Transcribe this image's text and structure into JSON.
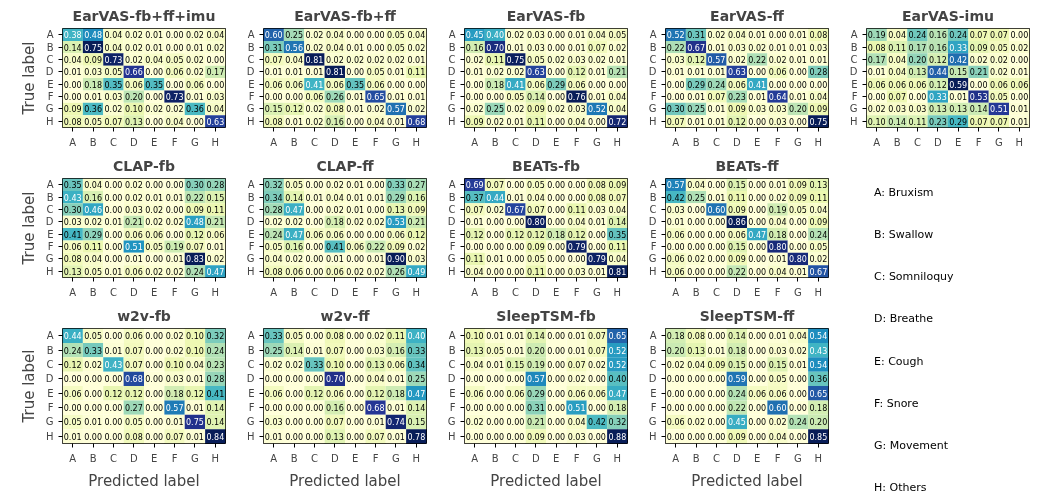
{
  "chart_data": [
    {
      "type": "heatmap",
      "title": "EarVAS-fb+ff+imu",
      "ylabel": "True label",
      "categories": [
        "A",
        "B",
        "C",
        "D",
        "E",
        "F",
        "G",
        "H"
      ],
      "y_categories": [
        "A",
        "B",
        "C",
        "D",
        "E",
        "F",
        "G",
        "H"
      ],
      "cells": [
        [
          0.38,
          0.48,
          0.04,
          0.02,
          0.01,
          0.0,
          0.02,
          0.04
        ],
        [
          0.14,
          0.75,
          0.04,
          0.02,
          0.01,
          0.0,
          0.01,
          0.02
        ],
        [
          0.04,
          0.09,
          0.73,
          0.02,
          0.04,
          0.05,
          0.02,
          0.0
        ],
        [
          0.01,
          0.03,
          0.05,
          0.66,
          0.0,
          0.06,
          0.02,
          0.17
        ],
        [
          0.0,
          0.18,
          0.35,
          0.06,
          0.35,
          0.0,
          0.06,
          0.0
        ],
        [
          0.0,
          0.01,
          0.03,
          0.2,
          0.0,
          0.73,
          0.01,
          0.03
        ],
        [
          0.09,
          0.36,
          0.02,
          0.1,
          0.02,
          0.02,
          0.36,
          0.04
        ],
        [
          0.08,
          0.05,
          0.07,
          0.13,
          0.0,
          0.04,
          0.0,
          0.63
        ]
      ],
      "cell_labels": [
        [
          "0.38",
          "0.48",
          "0.04",
          "0.02",
          "0.01",
          "0.00",
          "0.02",
          "0.04"
        ],
        [
          "0.14",
          "0.75",
          "0.04",
          "0.02",
          "0.01",
          "0.00",
          "0.01",
          "0.02"
        ],
        [
          "0.04",
          "0.09",
          "0.73",
          "0.02",
          "0.04",
          "0.05",
          "0.02",
          "0.00"
        ],
        [
          "0.01",
          "0.03",
          "0.05",
          "0.66",
          "0.00",
          "0.06",
          "0.02",
          "0.17"
        ],
        [
          "0.00",
          "0.18",
          "0.35",
          "0.06",
          "0.35",
          "0.00",
          "0.06",
          "0.00"
        ],
        [
          "0.00",
          "0.01",
          "0.03",
          "0.20",
          "0.00",
          "0.73",
          "0.01",
          "0.03"
        ],
        [
          "0.09",
          "0.36",
          "0.02",
          "0.10",
          "0.02",
          "0.02",
          "0.36",
          "0.04"
        ],
        [
          "0.08",
          "0.05",
          "0.07",
          "0.13",
          "0.00",
          "0.04",
          "0.00",
          "0.63"
        ]
      ]
    },
    {
      "type": "heatmap",
      "title": "EarVAS-fb+ff",
      "categories": [
        "A",
        "B",
        "C",
        "D",
        "E",
        "F",
        "G",
        "H"
      ],
      "y_categories": [
        "A",
        "B",
        "C",
        "D",
        "E",
        "F",
        "G",
        "H"
      ],
      "cells": [
        [
          0.6,
          0.25,
          0.02,
          0.04,
          0.0,
          0.0,
          0.05,
          0.04
        ],
        [
          0.31,
          0.56,
          0.02,
          0.04,
          0.01,
          0.0,
          0.05,
          0.02
        ],
        [
          0.07,
          0.04,
          0.81,
          0.02,
          0.02,
          0.02,
          0.02,
          0.01
        ],
        [
          0.01,
          0.01,
          0.01,
          0.81,
          0.0,
          0.05,
          0.01,
          0.11
        ],
        [
          0.06,
          0.06,
          0.41,
          0.06,
          0.35,
          0.06,
          0.0,
          0.0
        ],
        [
          0.0,
          0.0,
          0.06,
          0.26,
          0.01,
          0.65,
          0.01,
          0.01
        ],
        [
          0.15,
          0.12,
          0.02,
          0.08,
          0.01,
          0.02,
          0.57,
          0.02
        ],
        [
          0.08,
          0.01,
          0.02,
          0.16,
          0.0,
          0.04,
          0.01,
          0.68
        ]
      ],
      "cell_labels": [
        [
          "0.60",
          "0.25",
          "0.02",
          "0.04",
          "0.00",
          "0.00",
          "0.05",
          "0.04"
        ],
        [
          "0.31",
          "0.56",
          "0.02",
          "0.04",
          "0.01",
          "0.00",
          "0.05",
          "0.02"
        ],
        [
          "0.07",
          "0.04",
          "0.81",
          "0.02",
          "0.02",
          "0.02",
          "0.02",
          "0.01"
        ],
        [
          "0.01",
          "0.01",
          "0.01",
          "0.81",
          "0.00",
          "0.05",
          "0.01",
          "0.11"
        ],
        [
          "0.06",
          "0.06",
          "0.41",
          "0.06",
          "0.35",
          "0.06",
          "0.00",
          "0.00"
        ],
        [
          "0.00",
          "0.00",
          "0.06",
          "0.26",
          "0.01",
          "0.65",
          "0.01",
          "0.01"
        ],
        [
          "0.15",
          "0.12",
          "0.02",
          "0.08",
          "0.01",
          "0.02",
          "0.57",
          "0.02"
        ],
        [
          "0.08",
          "0.01",
          "0.02",
          "0.16",
          "0.00",
          "0.04",
          "0.01",
          "0.68"
        ]
      ]
    },
    {
      "type": "heatmap",
      "title": "EarVAS-fb",
      "categories": [
        "A",
        "B",
        "C",
        "D",
        "E",
        "F",
        "G",
        "H"
      ],
      "y_categories": [
        "A",
        "B",
        "C",
        "D",
        "E",
        "F",
        "G",
        "H"
      ],
      "cells": [
        [
          0.45,
          0.4,
          0.02,
          0.03,
          0.0,
          0.01,
          0.04,
          0.05
        ],
        [
          0.16,
          0.7,
          0.01,
          0.03,
          0.0,
          0.01,
          0.07,
          0.02
        ],
        [
          0.02,
          0.11,
          0.75,
          0.05,
          0.02,
          0.03,
          0.02,
          0.01
        ],
        [
          0.01,
          0.02,
          0.02,
          0.63,
          0.0,
          0.12,
          0.01,
          0.21
        ],
        [
          0.0,
          0.18,
          0.41,
          0.06,
          0.29,
          0.06,
          0.0,
          0.0
        ],
        [
          0.0,
          0.0,
          0.05,
          0.14,
          0.0,
          0.76,
          0.01,
          0.04
        ],
        [
          0.02,
          0.25,
          0.02,
          0.09,
          0.02,
          0.03,
          0.52,
          0.04
        ],
        [
          0.09,
          0.02,
          0.01,
          0.11,
          0.0,
          0.04,
          0.0,
          0.72
        ]
      ],
      "cell_labels": [
        [
          "0.45",
          "0.40",
          "0.02",
          "0.03",
          "0.00",
          "0.01",
          "0.04",
          "0.05"
        ],
        [
          "0.16",
          "0.70",
          "0.01",
          "0.03",
          "0.00",
          "0.01",
          "0.07",
          "0.02"
        ],
        [
          "0.02",
          "0.11",
          "0.75",
          "0.05",
          "0.02",
          "0.03",
          "0.02",
          "0.01"
        ],
        [
          "0.01",
          "0.02",
          "0.02",
          "0.63",
          "0.00",
          "0.12",
          "0.01",
          "0.21"
        ],
        [
          "0.00",
          "0.18",
          "0.41",
          "0.06",
          "0.29",
          "0.06",
          "0.00",
          "0.00"
        ],
        [
          "0.00",
          "0.00",
          "0.05",
          "0.14",
          "0.00",
          "0.76",
          "0.01",
          "0.04"
        ],
        [
          "0.02",
          "0.25",
          "0.02",
          "0.09",
          "0.02",
          "0.03",
          "0.52",
          "0.04"
        ],
        [
          "0.09",
          "0.02",
          "0.01",
          "0.11",
          "0.00",
          "0.04",
          "0.00",
          "0.72"
        ]
      ]
    },
    {
      "type": "heatmap",
      "title": "EarVAS-ff",
      "categories": [
        "A",
        "B",
        "C",
        "D",
        "E",
        "F",
        "G",
        "H"
      ],
      "y_categories": [
        "A",
        "B",
        "C",
        "D",
        "E",
        "F",
        "G",
        "H"
      ],
      "cells": [
        [
          0.52,
          0.31,
          0.02,
          0.04,
          0.01,
          0.0,
          0.01,
          0.08
        ],
        [
          0.22,
          0.67,
          0.01,
          0.03,
          0.02,
          0.01,
          0.01,
          0.03
        ],
        [
          0.03,
          0.12,
          0.57,
          0.02,
          0.22,
          0.02,
          0.01,
          0.01
        ],
        [
          0.01,
          0.01,
          0.01,
          0.63,
          0.0,
          0.06,
          0.0,
          0.28
        ],
        [
          0.0,
          0.29,
          0.24,
          0.06,
          0.41,
          0.0,
          0.0,
          0.0
        ],
        [
          0.0,
          0.01,
          0.07,
          0.23,
          0.01,
          0.64,
          0.01,
          0.04
        ],
        [
          0.3,
          0.25,
          0.01,
          0.09,
          0.03,
          0.03,
          0.2,
          0.09
        ],
        [
          0.07,
          0.01,
          0.01,
          0.12,
          0.0,
          0.03,
          0.0,
          0.75
        ]
      ],
      "cell_labels": [
        [
          "0.52",
          "0.31",
          "0.02",
          "0.04",
          "0.01",
          "0.00",
          "0.01",
          "0.08"
        ],
        [
          "0.22",
          "0.67",
          "0.01",
          "0.03",
          "0.02",
          "0.01",
          "0.01",
          "0.03"
        ],
        [
          "0.03",
          "0.12",
          "0.57",
          "0.02",
          "0.22",
          "0.02",
          "0.01",
          "0.01"
        ],
        [
          "0.01",
          "0.01",
          "0.01",
          "0.63",
          "0.00",
          "0.06",
          "0.00",
          "0.28"
        ],
        [
          "0.00",
          "0.29",
          "0.24",
          "0.06",
          "0.41",
          "0.00",
          "0.00",
          "0.00"
        ],
        [
          "0.00",
          "0.01",
          "0.07",
          "0.23",
          "0.01",
          "0.64",
          "0.01",
          "0.04"
        ],
        [
          "0.30",
          "0.25",
          "0.01",
          "0.09",
          "0.03",
          "0.03",
          "0.20",
          "0.09"
        ],
        [
          "0.07",
          "0.01",
          "0.01",
          "0.12",
          "0.00",
          "0.03",
          "0.00",
          "0.75"
        ]
      ]
    },
    {
      "type": "heatmap",
      "title": "EarVAS-imu",
      "categories": [
        "A",
        "B",
        "C",
        "D",
        "E",
        "F",
        "G",
        "H"
      ],
      "y_categories": [
        "A",
        "B",
        "C",
        "D",
        "E",
        "F",
        "G",
        "H"
      ],
      "cells": [
        [
          0.19,
          0.04,
          0.24,
          0.16,
          0.24,
          0.07,
          0.07,
          0.0
        ],
        [
          0.08,
          0.11,
          0.17,
          0.16,
          0.33,
          0.09,
          0.05,
          0.02
        ],
        [
          0.17,
          0.04,
          0.2,
          0.12,
          0.42,
          0.02,
          0.02,
          0.0
        ],
        [
          0.01,
          0.04,
          0.13,
          0.44,
          0.15,
          0.21,
          0.02,
          0.01
        ],
        [
          0.06,
          0.06,
          0.06,
          0.12,
          0.59,
          0.0,
          0.06,
          0.06
        ],
        [
          0.0,
          0.07,
          0.0,
          0.33,
          0.01,
          0.53,
          0.05,
          0.0
        ],
        [
          0.02,
          0.03,
          0.03,
          0.13,
          0.13,
          0.14,
          0.51,
          0.01
        ],
        [
          0.1,
          0.14,
          0.11,
          0.23,
          0.29,
          0.07,
          0.07,
          0.01
        ]
      ],
      "cell_labels": [
        [
          "0.19",
          "0.04",
          "0.24",
          "0.16",
          "0.24",
          "0.07",
          "0.07",
          "0.00"
        ],
        [
          "0.08",
          "0.11",
          "0.17",
          "0.16",
          "0.33",
          "0.09",
          "0.05",
          "0.02"
        ],
        [
          "0.17",
          "0.04",
          "0.20",
          "0.12",
          "0.42",
          "0.02",
          "0.02",
          "0.00"
        ],
        [
          "0.01",
          "0.04",
          "0.13",
          "0.44",
          "0.15",
          "0.21",
          "0.02",
          "0.01"
        ],
        [
          "0.06",
          "0.06",
          "0.06",
          "0.12",
          "0.59",
          "0.00",
          "0.06",
          "0.06"
        ],
        [
          "0.00",
          "0.07",
          "0.00",
          "0.33",
          "0.01",
          "0.53",
          "0.05",
          "0.00"
        ],
        [
          "0.02",
          "0.03",
          "0.03",
          "0.13",
          "0.13",
          "0.14",
          "0.51",
          "0.01"
        ],
        [
          "0.10",
          "0.14",
          "0.11",
          "0.23",
          "0.29",
          "0.07",
          "0.07",
          "0.01"
        ]
      ]
    },
    {
      "type": "heatmap",
      "title": "CLAP-fb",
      "ylabel": "True label",
      "categories": [
        "A",
        "B",
        "C",
        "D",
        "E",
        "F",
        "G",
        "H"
      ],
      "y_categories": [
        "A",
        "B",
        "C",
        "D",
        "E",
        "F",
        "G",
        "H"
      ],
      "cells": [
        [
          0.35,
          0.04,
          0.0,
          0.02,
          0.0,
          0.0,
          0.3,
          0.28
        ],
        [
          0.43,
          0.16,
          0.0,
          0.02,
          0.01,
          0.01,
          0.22,
          0.15
        ],
        [
          0.3,
          0.46,
          0.0,
          0.03,
          0.02,
          0.0,
          0.09,
          0.11
        ],
        [
          0.03,
          0.02,
          0.01,
          0.21,
          0.02,
          0.02,
          0.48,
          0.21
        ],
        [
          0.41,
          0.29,
          0.0,
          0.06,
          0.06,
          0.0,
          0.12,
          0.06
        ],
        [
          0.06,
          0.11,
          0.0,
          0.51,
          0.05,
          0.19,
          0.07,
          0.01
        ],
        [
          0.08,
          0.04,
          0.0,
          0.01,
          0.0,
          0.01,
          0.83,
          0.02
        ],
        [
          0.13,
          0.05,
          0.01,
          0.06,
          0.02,
          0.02,
          0.24,
          0.47
        ]
      ],
      "cell_labels": [
        [
          "0.35",
          "0.04",
          "0.00",
          "0.02",
          "0.00",
          "0.00",
          "0.30",
          "0.28"
        ],
        [
          "0.43",
          "0.16",
          "0.00",
          "0.02",
          "0.01",
          "0.01",
          "0.22",
          "0.15"
        ],
        [
          "0.30",
          "0.46",
          "0.00",
          "0.03",
          "0.02",
          "0.00",
          "0.09",
          "0.11"
        ],
        [
          "0.03",
          "0.02",
          "0.01",
          "0.21",
          "0.02",
          "0.02",
          "0.48",
          "0.21"
        ],
        [
          "0.41",
          "0.29",
          "0.00",
          "0.06",
          "0.06",
          "0.00",
          "0.12",
          "0.06"
        ],
        [
          "0.06",
          "0.11",
          "0.00",
          "0.51",
          "0.05",
          "0.19",
          "0.07",
          "0.01"
        ],
        [
          "0.08",
          "0.04",
          "0.00",
          "0.01",
          "0.00",
          "0.01",
          "0.83",
          "0.02"
        ],
        [
          "0.13",
          "0.05",
          "0.01",
          "0.06",
          "0.02",
          "0.02",
          "0.24",
          "0.47"
        ]
      ]
    },
    {
      "type": "heatmap",
      "title": "CLAP-ff",
      "categories": [
        "A",
        "B",
        "C",
        "D",
        "E",
        "F",
        "G",
        "H"
      ],
      "y_categories": [
        "A",
        "B",
        "C",
        "D",
        "E",
        "F",
        "G",
        "H"
      ],
      "cells": [
        [
          0.32,
          0.05,
          0.0,
          0.02,
          0.01,
          0.0,
          0.33,
          0.27
        ],
        [
          0.34,
          0.14,
          0.01,
          0.04,
          0.01,
          0.01,
          0.29,
          0.16
        ],
        [
          0.28,
          0.47,
          0.0,
          0.02,
          0.01,
          0.0,
          0.13,
          0.09
        ],
        [
          0.02,
          0.02,
          0.0,
          0.18,
          0.02,
          0.02,
          0.53,
          0.21
        ],
        [
          0.24,
          0.47,
          0.06,
          0.06,
          0.0,
          0.0,
          0.06,
          0.12
        ],
        [
          0.05,
          0.16,
          0.0,
          0.41,
          0.06,
          0.22,
          0.09,
          0.02
        ],
        [
          0.04,
          0.02,
          0.0,
          0.01,
          0.0,
          0.01,
          0.9,
          0.03
        ],
        [
          0.08,
          0.06,
          0.0,
          0.06,
          0.02,
          0.02,
          0.26,
          0.49
        ]
      ],
      "cell_labels": [
        [
          "0.32",
          "0.05",
          "0.00",
          "0.02",
          "0.01",
          "0.00",
          "0.33",
          "0.27"
        ],
        [
          "0.34",
          "0.14",
          "0.01",
          "0.04",
          "0.01",
          "0.01",
          "0.29",
          "0.16"
        ],
        [
          "0.28",
          "0.47",
          "0.00",
          "0.02",
          "0.01",
          "0.00",
          "0.13",
          "0.09"
        ],
        [
          "0.02",
          "0.02",
          "0.00",
          "0.18",
          "0.02",
          "0.02",
          "0.53",
          "0.21"
        ],
        [
          "0.24",
          "0.47",
          "0.06",
          "0.06",
          "0.00",
          "0.00",
          "0.06",
          "0.12"
        ],
        [
          "0.05",
          "0.16",
          "0.00",
          "0.41",
          "0.06",
          "0.22",
          "0.09",
          "0.02"
        ],
        [
          "0.04",
          "0.02",
          "0.00",
          "0.01",
          "0.00",
          "0.01",
          "0.90",
          "0.03"
        ],
        [
          "0.08",
          "0.06",
          "0.00",
          "0.06",
          "0.02",
          "0.02",
          "0.26",
          "0.49"
        ]
      ]
    },
    {
      "type": "heatmap",
      "title": "BEATs-fb",
      "categories": [
        "A",
        "B",
        "C",
        "D",
        "E",
        "F",
        "G",
        "H"
      ],
      "y_categories": [
        "A",
        "B",
        "C",
        "D",
        "E",
        "F",
        "G",
        "H"
      ],
      "cells": [
        [
          0.69,
          0.07,
          0.0,
          0.05,
          0.0,
          0.0,
          0.08,
          0.09
        ],
        [
          0.37,
          0.44,
          0.01,
          0.04,
          0.0,
          0.0,
          0.08,
          0.07
        ],
        [
          0.07,
          0.02,
          0.67,
          0.07,
          0.0,
          0.11,
          0.03,
          0.04
        ],
        [
          0.01,
          0.0,
          0.0,
          0.8,
          0.0,
          0.04,
          0.01,
          0.14
        ],
        [
          0.12,
          0.0,
          0.12,
          0.12,
          0.18,
          0.12,
          0.0,
          0.35
        ],
        [
          0.0,
          0.0,
          0.0,
          0.09,
          0.0,
          0.79,
          0.0,
          0.11
        ],
        [
          0.11,
          0.01,
          0.0,
          0.05,
          0.0,
          0.0,
          0.79,
          0.04
        ],
        [
          0.04,
          0.0,
          0.0,
          0.11,
          0.0,
          0.03,
          0.01,
          0.81
        ]
      ],
      "cell_labels": [
        [
          "0.69",
          "0.07",
          "0.00",
          "0.05",
          "0.00",
          "0.00",
          "0.08",
          "0.09"
        ],
        [
          "0.37",
          "0.44",
          "0.01",
          "0.04",
          "0.00",
          "0.00",
          "0.08",
          "0.07"
        ],
        [
          "0.07",
          "0.02",
          "0.67",
          "0.07",
          "0.00",
          "0.11",
          "0.03",
          "0.04"
        ],
        [
          "0.01",
          "0.00",
          "0.00",
          "0.80",
          "0.00",
          "0.04",
          "0.01",
          "0.14"
        ],
        [
          "0.12",
          "0.00",
          "0.12",
          "0.12",
          "0.18",
          "0.12",
          "0.00",
          "0.35"
        ],
        [
          "0.00",
          "0.00",
          "0.00",
          "0.09",
          "0.00",
          "0.79",
          "0.00",
          "0.11"
        ],
        [
          "0.11",
          "0.01",
          "0.00",
          "0.05",
          "0.00",
          "0.00",
          "0.79",
          "0.04"
        ],
        [
          "0.04",
          "0.00",
          "0.00",
          "0.11",
          "0.00",
          "0.03",
          "0.01",
          "0.81"
        ]
      ]
    },
    {
      "type": "heatmap",
      "title": "BEATs-ff",
      "categories": [
        "A",
        "B",
        "C",
        "D",
        "E",
        "F",
        "G",
        "H"
      ],
      "y_categories": [
        "A",
        "B",
        "C",
        "D",
        "E",
        "F",
        "G",
        "H"
      ],
      "cells": [
        [
          0.57,
          0.04,
          0.0,
          0.15,
          0.0,
          0.01,
          0.09,
          0.13
        ],
        [
          0.42,
          0.25,
          0.01,
          0.11,
          0.0,
          0.02,
          0.09,
          0.11
        ],
        [
          0.03,
          0.0,
          0.6,
          0.09,
          0.0,
          0.19,
          0.05,
          0.04
        ],
        [
          0.01,
          0.0,
          0.0,
          0.86,
          0.0,
          0.04,
          0.0,
          0.09
        ],
        [
          0.06,
          0.0,
          0.0,
          0.06,
          0.47,
          0.18,
          0.0,
          0.24
        ],
        [
          0.0,
          0.0,
          0.0,
          0.15,
          0.0,
          0.8,
          0.0,
          0.05
        ],
        [
          0.06,
          0.02,
          0.0,
          0.09,
          0.0,
          0.01,
          0.8,
          0.02
        ],
        [
          0.06,
          0.0,
          0.0,
          0.22,
          0.0,
          0.04,
          0.01,
          0.67
        ]
      ],
      "cell_labels": [
        [
          "0.57",
          "0.04",
          "0.00",
          "0.15",
          "0.00",
          "0.01",
          "0.09",
          "0.13"
        ],
        [
          "0.42",
          "0.25",
          "0.01",
          "0.11",
          "0.00",
          "0.02",
          "0.09",
          "0.11"
        ],
        [
          "0.03",
          "0.00",
          "0.60",
          "0.09",
          "0.00",
          "0.19",
          "0.05",
          "0.04"
        ],
        [
          "0.01",
          "0.00",
          "0.00",
          "0.86",
          "0.00",
          "0.04",
          "0.00",
          "0.09"
        ],
        [
          "0.06",
          "0.00",
          "0.00",
          "0.06",
          "0.47",
          "0.18",
          "0.00",
          "0.24"
        ],
        [
          "0.00",
          "0.00",
          "0.00",
          "0.15",
          "0.00",
          "0.80",
          "0.00",
          "0.05"
        ],
        [
          "0.06",
          "0.02",
          "0.00",
          "0.09",
          "0.00",
          "0.01",
          "0.80",
          "0.02"
        ],
        [
          "0.06",
          "0.00",
          "0.00",
          "0.22",
          "0.00",
          "0.04",
          "0.01",
          "0.67"
        ]
      ]
    },
    {
      "type": "other",
      "annotations": [
        "A: Bruxism",
        "B: Swallow",
        "C: Somniloquy",
        "D: Breathe",
        "E: Cough",
        "F: Snore",
        "G: Movement",
        "H: Others"
      ]
    },
    {
      "type": "heatmap",
      "title": "w2v-fb",
      "ylabel": "True label",
      "xlabel": "Predicted label",
      "categories": [
        "A",
        "B",
        "C",
        "D",
        "E",
        "F",
        "G",
        "H"
      ],
      "y_categories": [
        "A",
        "B",
        "C",
        "D",
        "E",
        "F",
        "G",
        "H"
      ],
      "cells": [
        [
          0.44,
          0.05,
          0.0,
          0.06,
          0.0,
          0.02,
          0.1,
          0.32
        ],
        [
          0.24,
          0.33,
          0.01,
          0.07,
          0.0,
          0.02,
          0.1,
          0.24
        ],
        [
          0.12,
          0.02,
          0.43,
          0.07,
          0.0,
          0.1,
          0.04,
          0.23
        ],
        [
          0.0,
          0.0,
          0.0,
          0.68,
          0.0,
          0.03,
          0.01,
          0.28
        ],
        [
          0.06,
          0.0,
          0.12,
          0.12,
          0.0,
          0.18,
          0.12,
          0.41
        ],
        [
          0.0,
          0.0,
          0.0,
          0.27,
          0.0,
          0.57,
          0.01,
          0.14
        ],
        [
          0.05,
          0.01,
          0.0,
          0.05,
          0.0,
          0.01,
          0.75,
          0.14
        ],
        [
          0.01,
          0.0,
          0.0,
          0.08,
          0.0,
          0.07,
          0.01,
          0.84
        ]
      ],
      "cell_labels": [
        [
          "0.44",
          "0.05",
          "0.00",
          "0.06",
          "0.00",
          "0.02",
          "0.10",
          "0.32"
        ],
        [
          "0.24",
          "0.33",
          "0.01",
          "0.07",
          "0.00",
          "0.02",
          "0.10",
          "0.24"
        ],
        [
          "0.12",
          "0.02",
          "0.43",
          "0.07",
          "0.00",
          "0.10",
          "0.04",
          "0.23"
        ],
        [
          "0.00",
          "0.00",
          "0.00",
          "0.68",
          "0.00",
          "0.03",
          "0.01",
          "0.28"
        ],
        [
          "0.06",
          "0.00",
          "0.12",
          "0.12",
          "0.00",
          "0.18",
          "0.12",
          "0.41"
        ],
        [
          "0.00",
          "0.00",
          "0.00",
          "0.27",
          "0.00",
          "0.57",
          "0.01",
          "0.14"
        ],
        [
          "0.05",
          "0.01",
          "0.00",
          "0.05",
          "0.00",
          "0.01",
          "0.75",
          "0.14"
        ],
        [
          "0.01",
          "0.00",
          "0.00",
          "0.08",
          "0.00",
          "0.07",
          "0.01",
          "0.84"
        ]
      ]
    },
    {
      "type": "heatmap",
      "title": "w2v-ff",
      "xlabel": "Predicted label",
      "categories": [
        "A",
        "B",
        "C",
        "D",
        "E",
        "F",
        "G",
        "H"
      ],
      "y_categories": [
        "A",
        "B",
        "C",
        "D",
        "E",
        "F",
        "G",
        "H"
      ],
      "cells": [
        [
          0.33,
          0.05,
          0.0,
          0.08,
          0.0,
          0.02,
          0.11,
          0.4
        ],
        [
          0.25,
          0.14,
          0.01,
          0.07,
          0.0,
          0.03,
          0.16,
          0.33
        ],
        [
          0.02,
          0.02,
          0.33,
          0.1,
          0.0,
          0.13,
          0.06,
          0.34
        ],
        [
          0.0,
          0.0,
          0.0,
          0.7,
          0.0,
          0.04,
          0.01,
          0.25
        ],
        [
          0.06,
          0.0,
          0.12,
          0.06,
          0.0,
          0.12,
          0.18,
          0.47
        ],
        [
          0.0,
          0.0,
          0.0,
          0.16,
          0.0,
          0.68,
          0.01,
          0.14
        ],
        [
          0.03,
          0.0,
          0.0,
          0.07,
          0.0,
          0.01,
          0.74,
          0.15
        ],
        [
          0.01,
          0.0,
          0.0,
          0.13,
          0.0,
          0.07,
          0.01,
          0.78
        ]
      ],
      "cell_labels": [
        [
          "0.33",
          "0.05",
          "0.00",
          "0.08",
          "0.00",
          "0.02",
          "0.11",
          "0.40"
        ],
        [
          "0.25",
          "0.14",
          "0.01",
          "0.07",
          "0.00",
          "0.03",
          "0.16",
          "0.33"
        ],
        [
          "0.02",
          "0.02",
          "0.33",
          "0.10",
          "0.00",
          "0.13",
          "0.06",
          "0.34"
        ],
        [
          "0.00",
          "0.00",
          "0.00",
          "0.70",
          "0.00",
          "0.04",
          "0.01",
          "0.25"
        ],
        [
          "0.06",
          "0.00",
          "0.12",
          "0.06",
          "0.00",
          "0.12",
          "0.18",
          "0.47"
        ],
        [
          "0.00",
          "0.00",
          "0.00",
          "0.16",
          "0.00",
          "0.68",
          "0.01",
          "0.14"
        ],
        [
          "0.03",
          "0.00",
          "0.00",
          "0.07",
          "0.00",
          "0.01",
          "0.74",
          "0.15"
        ],
        [
          "0.01",
          "0.00",
          "0.00",
          "0.13",
          "0.00",
          "0.07",
          "0.01",
          "0.78"
        ]
      ]
    },
    {
      "type": "heatmap",
      "title": "SleepTSM-fb",
      "xlabel": "Predicted label",
      "categories": [
        "A",
        "B",
        "C",
        "D",
        "E",
        "F",
        "G",
        "H"
      ],
      "y_categories": [
        "A",
        "B",
        "C",
        "D",
        "E",
        "F",
        "G",
        "H"
      ],
      "cells": [
        [
          0.1,
          0.01,
          0.01,
          0.14,
          0.0,
          0.01,
          0.07,
          0.65
        ],
        [
          0.13,
          0.05,
          0.01,
          0.2,
          0.0,
          0.01,
          0.07,
          0.52
        ],
        [
          0.04,
          0.01,
          0.15,
          0.19,
          0.0,
          0.07,
          0.02,
          0.52
        ],
        [
          0.0,
          0.0,
          0.0,
          0.57,
          0.0,
          0.02,
          0.0,
          0.4
        ],
        [
          0.06,
          0.0,
          0.06,
          0.29,
          0.0,
          0.06,
          0.06,
          0.47
        ],
        [
          0.0,
          0.0,
          0.0,
          0.31,
          0.0,
          0.51,
          0.0,
          0.18
        ],
        [
          0.02,
          0.0,
          0.0,
          0.21,
          0.0,
          0.04,
          0.42,
          0.32
        ],
        [
          0.0,
          0.0,
          0.0,
          0.09,
          0.0,
          0.03,
          0.0,
          0.88
        ]
      ],
      "cell_labels": [
        [
          "0.10",
          "0.01",
          "0.01",
          "0.14",
          "0.00",
          "0.01",
          "0.07",
          "0.65"
        ],
        [
          "0.13",
          "0.05",
          "0.01",
          "0.20",
          "0.00",
          "0.01",
          "0.07",
          "0.52"
        ],
        [
          "0.04",
          "0.01",
          "0.15",
          "0.19",
          "0.00",
          "0.07",
          "0.02",
          "0.52"
        ],
        [
          "0.00",
          "0.00",
          "0.00",
          "0.57",
          "0.00",
          "0.02",
          "0.00",
          "0.40"
        ],
        [
          "0.06",
          "0.00",
          "0.06",
          "0.29",
          "0.00",
          "0.06",
          "0.06",
          "0.47"
        ],
        [
          "0.00",
          "0.00",
          "0.00",
          "0.31",
          "0.00",
          "0.51",
          "0.00",
          "0.18"
        ],
        [
          "0.02",
          "0.00",
          "0.00",
          "0.21",
          "0.00",
          "0.04",
          "0.42",
          "0.32"
        ],
        [
          "0.00",
          "0.00",
          "0.00",
          "0.09",
          "0.00",
          "0.03",
          "0.00",
          "0.88"
        ]
      ]
    },
    {
      "type": "heatmap",
      "title": "SleepTSM-ff",
      "xlabel": "Predicted label",
      "categories": [
        "A",
        "B",
        "C",
        "D",
        "E",
        "F",
        "G",
        "H"
      ],
      "y_categories": [
        "A",
        "B",
        "C",
        "D",
        "E",
        "F",
        "G",
        "H"
      ],
      "cells": [
        [
          0.18,
          0.08,
          0.0,
          0.14,
          0.0,
          0.01,
          0.04,
          0.54
        ],
        [
          0.2,
          0.13,
          0.01,
          0.18,
          0.0,
          0.03,
          0.02,
          0.43
        ],
        [
          0.02,
          0.04,
          0.09,
          0.15,
          0.0,
          0.15,
          0.01,
          0.54
        ],
        [
          0.0,
          0.0,
          0.0,
          0.59,
          0.0,
          0.05,
          0.0,
          0.36
        ],
        [
          0.0,
          0.0,
          0.0,
          0.24,
          0.06,
          0.06,
          0.0,
          0.65
        ],
        [
          0.0,
          0.0,
          0.0,
          0.22,
          0.0,
          0.6,
          0.0,
          0.18
        ],
        [
          0.06,
          0.02,
          0.0,
          0.45,
          0.0,
          0.02,
          0.24,
          0.2
        ],
        [
          0.0,
          0.0,
          0.0,
          0.09,
          0.0,
          0.04,
          0.0,
          0.85
        ]
      ],
      "cell_labels": [
        [
          "0.18",
          "0.08",
          "0.00",
          "0.14",
          "0.00",
          "0.01",
          "0.04",
          "0.54"
        ],
        [
          "0.20",
          "0.13",
          "0.01",
          "0.18",
          "0.00",
          "0.03",
          "0.02",
          "0.43"
        ],
        [
          "0.02",
          "0.04",
          "0.09",
          "0.15",
          "0.00",
          "0.15",
          "0.01",
          "0.54"
        ],
        [
          "0.00",
          "0.00",
          "0.00",
          "0.59",
          "0.00",
          "0.05",
          "0.00",
          "0.36"
        ],
        [
          "0.00",
          "0.00",
          "0.00",
          "0.24",
          "0.06",
          "0.06",
          "0.00",
          "0.65"
        ],
        [
          "0.00",
          "0.00",
          "0.00",
          "0.22",
          "0.00",
          "0.60",
          "0.00",
          "0.18"
        ],
        [
          "0.06",
          "0.02",
          "0.00",
          "0.45",
          "0.00",
          "0.02",
          "0.24",
          "0.20"
        ],
        [
          "0.00",
          "0.00",
          "0.00",
          "0.09",
          "0.00",
          "0.04",
          "0.00",
          "0.85"
        ]
      ]
    }
  ]
}
